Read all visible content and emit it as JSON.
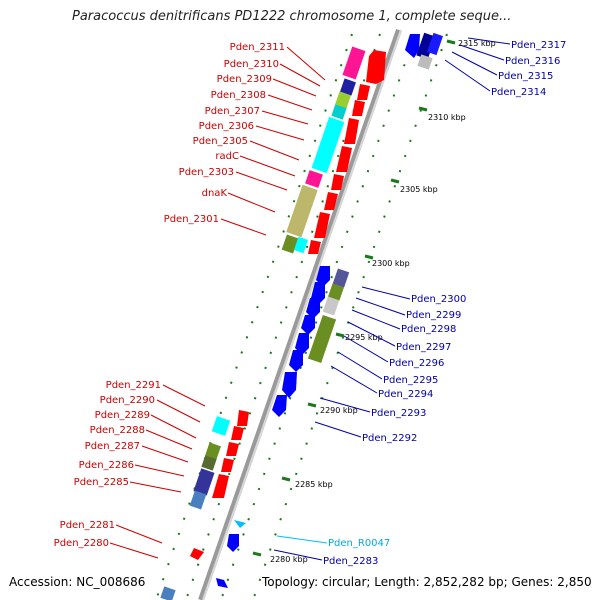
{
  "title": "Paracoccus denitrificans PD1222 chromosome 1, complete seque...",
  "footer": {
    "accession": "Accession: NC_008686",
    "summary": "Topology: circular; Length: 2,852,282 bp; Genes: 2,850"
  },
  "colors": {
    "forward": "#ff0000",
    "reverse": "#0000ff",
    "rna": "#00bfff",
    "backbone": "#808080",
    "tick": "#1a7a1a",
    "left_label": "#cc0000",
    "right_label": "#0000aa"
  },
  "ticks": [
    "2315 kbp",
    "2310 kbp",
    "2305 kbp",
    "2300 kbp",
    "2295 kbp",
    "2290 kbp",
    "2285 kbp",
    "2280 kbp"
  ],
  "left_labels": [
    "Pden_2311",
    "Pden_2310",
    "Pden_2309",
    "Pden_2308",
    "Pden_2307",
    "Pden_2306",
    "Pden_2305",
    "radC",
    "Pden_2303",
    "dnaK",
    "Pden_2301",
    "Pden_2291",
    "Pden_2290",
    "Pden_2289",
    "Pden_2288",
    "Pden_2287",
    "Pden_2286",
    "Pden_2285",
    "Pden_2281",
    "Pden_2280"
  ],
  "right_labels": [
    "Pden_2317",
    "Pden_2316",
    "Pden_2315",
    "Pden_2314",
    "Pden_2300",
    "Pden_2299",
    "Pden_2298",
    "Pden_2297",
    "Pden_2296",
    "Pden_2295",
    "Pden_2294",
    "Pden_2293",
    "Pden_2292",
    "Pden_R0047",
    "Pden_2283"
  ]
}
